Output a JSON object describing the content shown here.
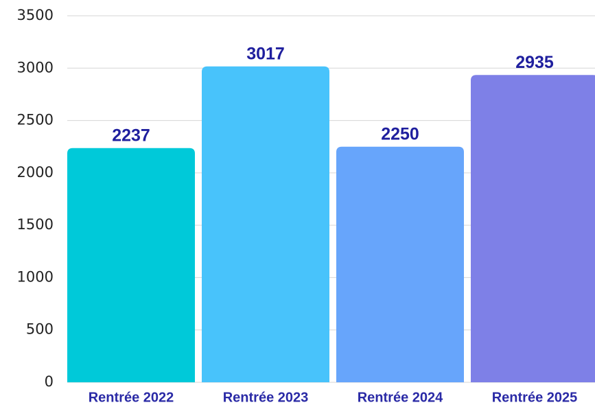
{
  "chart_data": {
    "type": "bar",
    "categories": [
      "Rentrée 2022",
      "Rentrée 2023",
      "Rentrée 2024",
      "Rentrée 2025"
    ],
    "values": [
      2237,
      3017,
      2250,
      2935
    ],
    "colors": [
      "#00c9d9",
      "#48c3fb",
      "#67a5fb",
      "#7e80e7"
    ],
    "ylim": [
      0,
      3500
    ],
    "yticks": [
      0,
      500,
      1000,
      1500,
      2000,
      2500,
      3000,
      3500
    ],
    "grid": true
  }
}
